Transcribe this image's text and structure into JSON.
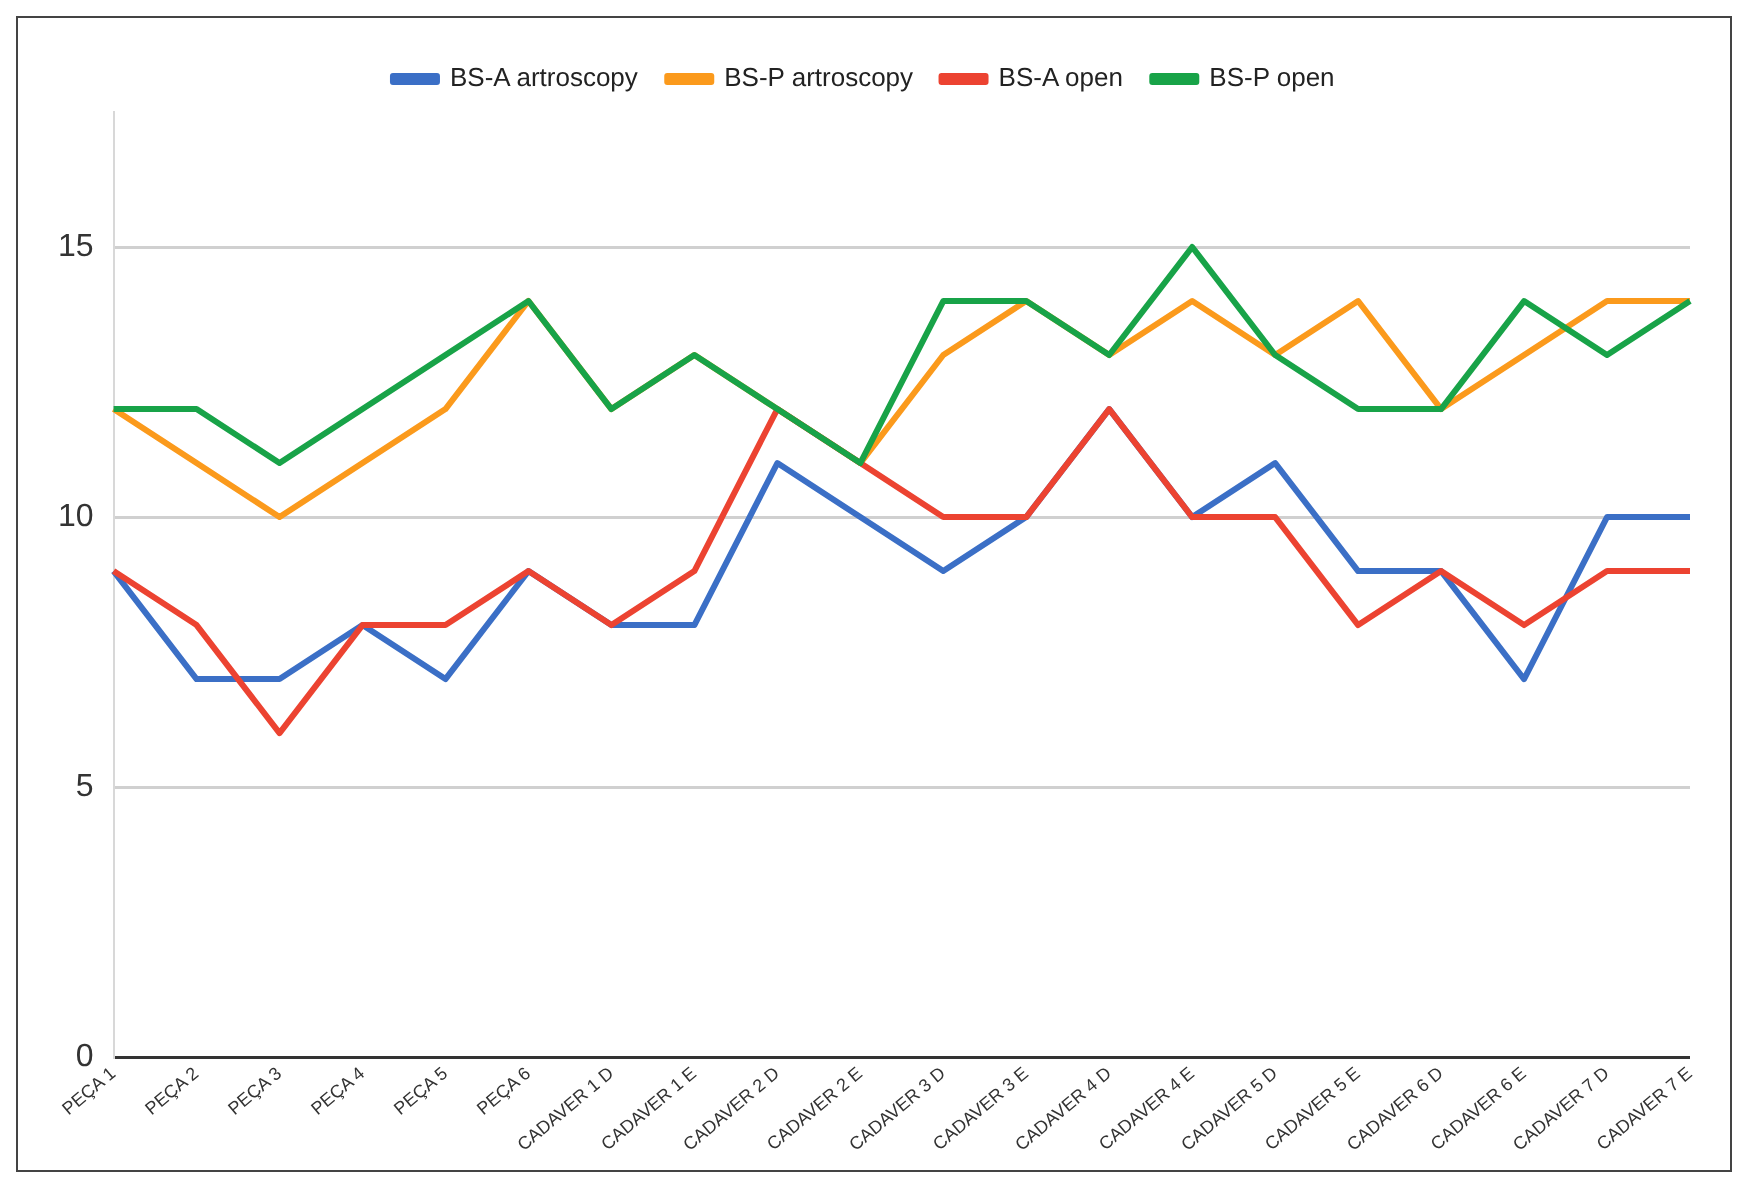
{
  "chart_data": {
    "type": "line",
    "categories": [
      "PEÇA 1",
      "PEÇA 2",
      "PEÇA 3",
      "PEÇA 4",
      "PEÇA 5",
      "PEÇA 6",
      "CADAVER 1 D",
      "CADAVER 1 E",
      "CADAVER 2 D",
      "CADAVER 2 E",
      "CADAVER 3 D",
      "CADAVER 3 E",
      "CADAVER 4 D",
      "CADAVER 4 E",
      "CADAVER 5 D",
      "CADAVER 5 E",
      "CADAVER 6 D",
      "CADAVER 6 E",
      "CADAVER 7 D",
      "CADAVER 7 E"
    ],
    "series": [
      {
        "name": "BS-A artroscopy",
        "color": "#3b6fc6",
        "values": [
          9,
          7,
          7,
          8,
          7,
          9,
          8,
          8,
          11,
          10,
          9,
          10,
          12,
          10,
          11,
          9,
          9,
          7,
          10,
          10
        ]
      },
      {
        "name": "BS-P artroscopy",
        "color": "#fb9a1c",
        "values": [
          12,
          11,
          10,
          11,
          12,
          14,
          12,
          13,
          12,
          11,
          13,
          14,
          13,
          14,
          13,
          14,
          12,
          13,
          14,
          14
        ]
      },
      {
        "name": "BS-A open",
        "color": "#ec4331",
        "values": [
          9,
          8,
          6,
          8,
          8,
          9,
          8,
          9,
          12,
          11,
          10,
          10,
          12,
          10,
          10,
          8,
          9,
          8,
          9,
          9
        ]
      },
      {
        "name": "BS-P open",
        "color": "#18a348",
        "values": [
          12,
          12,
          11,
          12,
          13,
          14,
          12,
          13,
          12,
          11,
          14,
          14,
          13,
          15,
          13,
          12,
          12,
          14,
          13,
          14
        ]
      }
    ],
    "ylim": [
      0,
      17.5
    ],
    "yticks": [
      0,
      5,
      10,
      15
    ],
    "grid": "y",
    "legend": "top",
    "marker": "none",
    "line_style": "solid"
  }
}
